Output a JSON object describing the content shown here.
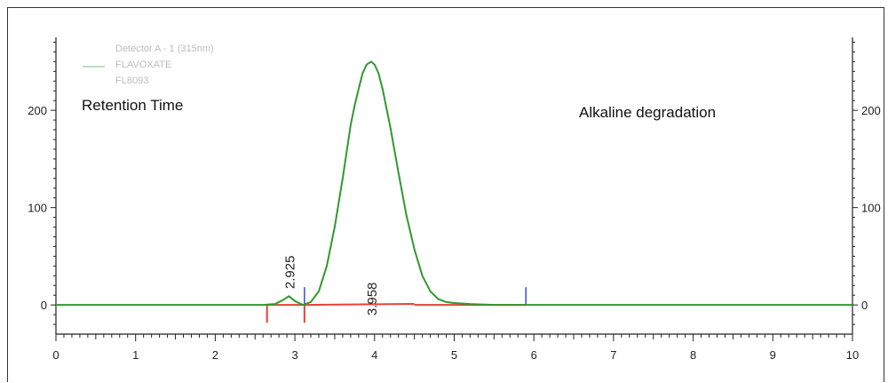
{
  "chart_data": {
    "type": "line",
    "title": "",
    "xlabel": "",
    "ylabel": "",
    "xlim": [
      0,
      10
    ],
    "ylim": [
      -30,
      275
    ],
    "x_ticks": [
      "0",
      "1",
      "2",
      "3",
      "4",
      "5",
      "6",
      "7",
      "8",
      "9",
      "10"
    ],
    "y_ticks": [
      "0",
      "100",
      "200"
    ],
    "right_y_ticks": [
      "0",
      "100",
      "200"
    ],
    "legend": {
      "position": "top-left",
      "entries": [
        "Detector A - 1 (315nm)",
        "FLAVOXATE",
        "FL8093"
      ],
      "line_color": "#8fcf8f"
    },
    "annotations": {
      "left": "Retention Time",
      "right": "Alkaline degradation"
    },
    "series": [
      {
        "color": "#2e9a2e",
        "x": [
          0,
          2.6,
          2.75,
          2.85,
          2.925,
          3.0,
          3.1,
          3.2,
          3.3,
          3.4,
          3.5,
          3.6,
          3.7,
          3.75,
          3.8,
          3.85,
          3.9,
          3.958,
          4.0,
          4.05,
          4.1,
          4.2,
          4.3,
          4.4,
          4.5,
          4.6,
          4.7,
          4.8,
          4.9,
          5.0,
          5.2,
          5.5,
          6.0,
          10.0
        ],
        "y": [
          0,
          0,
          1,
          5,
          9,
          4,
          0,
          3,
          14,
          40,
          80,
          130,
          185,
          205,
          222,
          238,
          247,
          250,
          247,
          238,
          222,
          182,
          136,
          92,
          57,
          30,
          14,
          6,
          3,
          2,
          1,
          0,
          0,
          0
        ]
      }
    ],
    "baseline_color": "#e8403a",
    "peaks": [
      {
        "label": "2.925",
        "x": 2.925
      },
      {
        "label": "3.958",
        "x": 3.958
      }
    ],
    "markers": [
      {
        "x": 2.65,
        "type": "start",
        "color": "#e8403a"
      },
      {
        "x": 3.12,
        "type": "split",
        "color": "#e8403a"
      },
      {
        "x": 3.12,
        "type": "tick",
        "color": "#3b4ad8"
      },
      {
        "x": 5.9,
        "type": "tick",
        "color": "#3b4ad8"
      }
    ]
  }
}
